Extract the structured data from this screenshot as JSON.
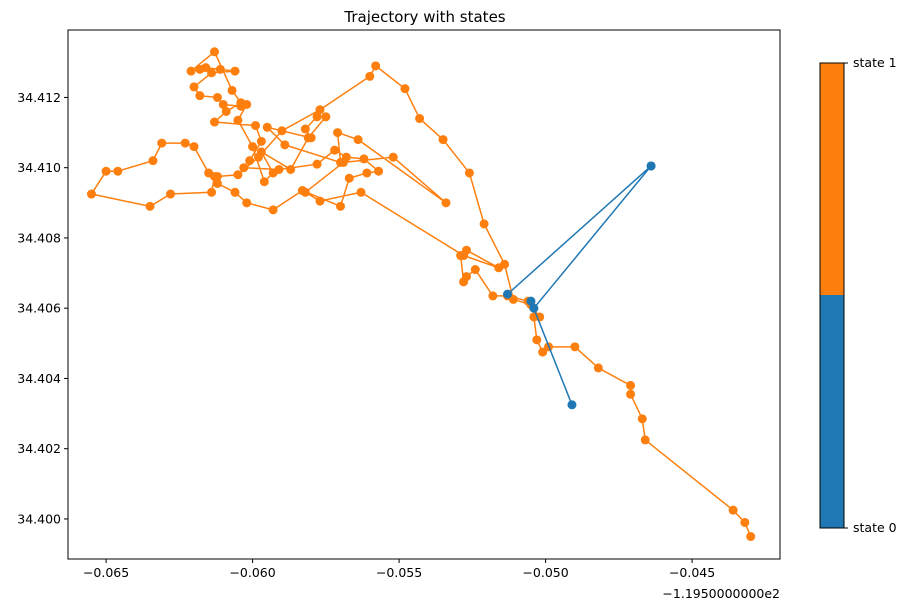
{
  "chart_data": {
    "type": "line",
    "title": "Trajectory with states",
    "xlabel": "",
    "ylabel": "",
    "x_offset_text": "−1.1950000000e2",
    "xlim": [
      -0.0663,
      -0.042
    ],
    "ylim": [
      34.39886,
      34.41392
    ],
    "x_ticks": [
      -0.065,
      -0.06,
      -0.055,
      -0.05,
      -0.045
    ],
    "x_tick_labels": [
      "−0.065",
      "−0.060",
      "−0.055",
      "−0.050",
      "−0.045"
    ],
    "y_ticks": [
      34.4,
      34.402,
      34.404,
      34.406,
      34.408,
      34.41,
      34.412
    ],
    "y_tick_labels": [
      "34.400",
      "34.402",
      "34.404",
      "34.406",
      "34.408",
      "34.410",
      "34.412"
    ],
    "grid": false,
    "colors": {
      "state0": "#1f77b4",
      "state1": "#ff7f0e"
    },
    "colorbar": {
      "labels": [
        "state 0",
        "state 1"
      ],
      "boundary_fraction": 0.5
    },
    "series": [
      {
        "name": "state 0",
        "color": "#1f77b4",
        "segments": [
          {
            "x": [
              -0.0464,
              -0.0513
            ],
            "y": [
              34.41005,
              34.4064
            ]
          },
          {
            "x": [
              -0.0464,
              -0.0504
            ],
            "y": [
              34.41005,
              34.406
            ]
          },
          {
            "x": [
              -0.0505,
              -0.0491
            ],
            "y": [
              34.4062,
              34.40325
            ]
          }
        ]
      },
      {
        "name": "state 1",
        "color": "#ff7f0e",
        "x": [
          -0.043,
          -0.0432,
          -0.0436,
          -0.0466,
          -0.0467,
          -0.0471,
          -0.0471,
          -0.0482,
          -0.049,
          -0.0499,
          -0.0501,
          -0.0503,
          -0.0504,
          -0.0502,
          -0.0506,
          -0.0513,
          -0.0518,
          -0.0524,
          -0.0527,
          -0.0528,
          -0.0529,
          -0.0527,
          -0.0516,
          -0.0528,
          -0.0563,
          -0.0577,
          -0.0582,
          -0.0569,
          -0.0552,
          -0.0534,
          -0.0564,
          -0.0571,
          -0.057,
          -0.0589,
          -0.0595,
          -0.058,
          -0.0582,
          -0.0578,
          -0.0575,
          -0.0581,
          -0.0587,
          -0.0597,
          -0.0593,
          -0.0596,
          -0.06,
          -0.0605,
          -0.0602,
          -0.0604,
          -0.061,
          -0.0612,
          -0.0618,
          -0.062,
          -0.0614,
          -0.0606,
          -0.0611,
          -0.0616,
          -0.0618,
          -0.0621,
          -0.0613,
          -0.0607,
          -0.0604,
          -0.0609,
          -0.0613,
          -0.0599,
          -0.0597,
          -0.0601,
          -0.0603,
          -0.0591,
          -0.0578,
          -0.0572,
          -0.0568,
          -0.0562,
          -0.0557,
          -0.0561,
          -0.0567,
          -0.057,
          -0.0583,
          -0.0593,
          -0.0602,
          -0.0606,
          -0.0612,
          -0.0615,
          -0.062,
          -0.0623,
          -0.0631,
          -0.0634,
          -0.0646,
          -0.065,
          -0.0655,
          -0.0635,
          -0.0628,
          -0.0614,
          -0.0613,
          -0.0612,
          -0.0605,
          -0.0598,
          -0.059,
          -0.0577,
          -0.056,
          -0.0558,
          -0.0548,
          -0.0543,
          -0.0535,
          -0.0526,
          -0.0521,
          -0.0514,
          -0.0511,
          -0.0505
        ],
        "y": [
          34.3995,
          34.3999,
          34.40025,
          34.40225,
          34.40285,
          34.40355,
          34.4038,
          34.4043,
          34.4049,
          34.4049,
          34.40475,
          34.4051,
          34.40575,
          34.40575,
          34.4062,
          34.40635,
          34.40635,
          34.4071,
          34.4069,
          34.40675,
          34.4075,
          34.40765,
          34.40715,
          34.4075,
          34.4093,
          34.40905,
          34.4093,
          34.41015,
          34.4103,
          34.409,
          34.4108,
          34.411,
          34.41015,
          34.41065,
          34.41115,
          34.41085,
          34.4111,
          34.41145,
          34.41145,
          34.41085,
          34.40995,
          34.41045,
          34.40985,
          34.4096,
          34.4106,
          34.41135,
          34.4118,
          34.41175,
          34.4118,
          34.412,
          34.41205,
          34.4123,
          34.4127,
          34.41275,
          34.4128,
          34.41285,
          34.4128,
          34.41275,
          34.4133,
          34.4122,
          34.41185,
          34.4116,
          34.4113,
          34.4112,
          34.41075,
          34.4102,
          34.41,
          34.40995,
          34.4101,
          34.4105,
          34.4103,
          34.41025,
          34.4099,
          34.40985,
          34.4097,
          34.4089,
          34.40935,
          34.4088,
          34.409,
          34.4093,
          34.40955,
          34.40985,
          34.4106,
          34.4107,
          34.4107,
          34.4102,
          34.4099,
          34.4099,
          34.40925,
          34.4089,
          34.40925,
          34.4093,
          34.40975,
          34.40975,
          34.4098,
          34.4103,
          34.41105,
          34.41165,
          34.4126,
          34.4129,
          34.41225,
          34.4114,
          34.4108,
          34.40985,
          34.4084,
          34.40725,
          34.40625,
          34.4061
        ]
      }
    ]
  }
}
